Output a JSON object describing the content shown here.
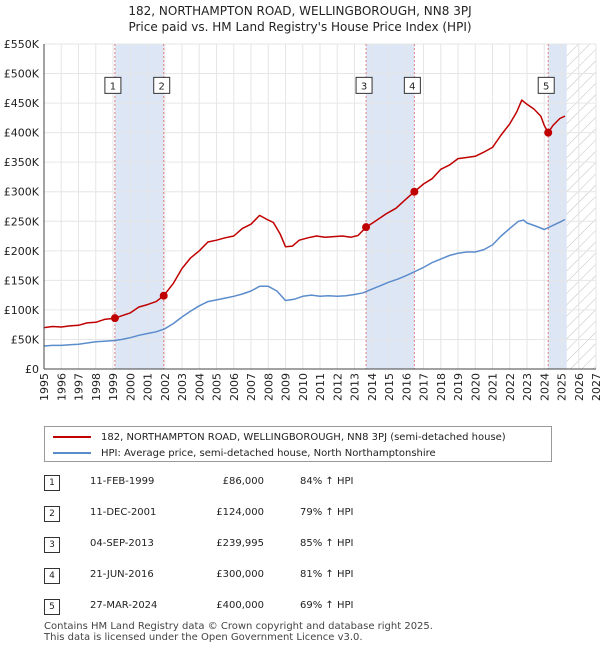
{
  "title": {
    "line1": "182, NORTHAMPTON ROAD, WELLINGBOROUGH, NN8 3PJ",
    "line2": "Price paid vs. HM Land Registry's House Price Index (HPI)"
  },
  "colors": {
    "property": "#c00000",
    "hpi": "#5b8ccc",
    "band": "#dde6f5",
    "marker_line": "#e08080",
    "future_hatch": "#c0c0c0",
    "grid": "#e6e6e6"
  },
  "chart_data": {
    "type": "line",
    "title": "182, NORTHAMPTON ROAD, WELLINGBOROUGH, NN8 3PJ — Price paid vs. HM Land Registry's House Price Index (HPI)",
    "xlim": [
      1995,
      2027
    ],
    "ylim": [
      0,
      550000
    ],
    "grid": true,
    "x_ticks": [
      1995,
      1996,
      1997,
      1998,
      1999,
      2000,
      2001,
      2002,
      2003,
      2004,
      2005,
      2006,
      2007,
      2008,
      2009,
      2010,
      2011,
      2012,
      2013,
      2014,
      2015,
      2016,
      2017,
      2018,
      2019,
      2020,
      2021,
      2022,
      2023,
      2024,
      2025,
      2026,
      2027
    ],
    "y_ticks": [
      {
        "value": 0,
        "label": "£0"
      },
      {
        "value": 50000,
        "label": "£50K"
      },
      {
        "value": 100000,
        "label": "£100K"
      },
      {
        "value": 150000,
        "label": "£150K"
      },
      {
        "value": 200000,
        "label": "£200K"
      },
      {
        "value": 250000,
        "label": "£250K"
      },
      {
        "value": 300000,
        "label": "£300K"
      },
      {
        "value": 350000,
        "label": "£350K"
      },
      {
        "value": 400000,
        "label": "£400K"
      },
      {
        "value": 450000,
        "label": "£450K"
      },
      {
        "value": 500000,
        "label": "£500K"
      },
      {
        "value": 550000,
        "label": "£550K"
      }
    ],
    "future_from": 2025.3,
    "shaded_bands": [
      [
        1999.11,
        2001.94
      ],
      [
        2013.67,
        2016.47
      ],
      [
        2024.23,
        2025.3
      ]
    ],
    "series": [
      {
        "name": "182, NORTHAMPTON ROAD, WELLINGBOROUGH, NN8 3PJ (semi-detached house)",
        "color": "#c00000",
        "points": [
          [
            1995,
            70000
          ],
          [
            1995.5,
            72000
          ],
          [
            1996,
            71000
          ],
          [
            1996.5,
            73000
          ],
          [
            1997,
            74000
          ],
          [
            1997.5,
            78000
          ],
          [
            1998,
            79000
          ],
          [
            1998.5,
            84000
          ],
          [
            1999.11,
            86000
          ],
          [
            1999.5,
            90000
          ],
          [
            2000,
            95000
          ],
          [
            2000.5,
            105000
          ],
          [
            2001,
            109000
          ],
          [
            2001.5,
            114000
          ],
          [
            2001.94,
            124000
          ],
          [
            2002.5,
            145000
          ],
          [
            2003,
            170000
          ],
          [
            2003.5,
            188000
          ],
          [
            2004,
            200000
          ],
          [
            2004.5,
            215000
          ],
          [
            2005,
            218000
          ],
          [
            2005.5,
            222000
          ],
          [
            2006,
            225000
          ],
          [
            2006.5,
            238000
          ],
          [
            2007,
            245000
          ],
          [
            2007.5,
            260000
          ],
          [
            2008,
            252000
          ],
          [
            2008.3,
            248000
          ],
          [
            2008.7,
            228000
          ],
          [
            2009,
            207000
          ],
          [
            2009.4,
            208000
          ],
          [
            2009.8,
            218000
          ],
          [
            2010.3,
            222000
          ],
          [
            2010.8,
            225000
          ],
          [
            2011.3,
            223000
          ],
          [
            2011.8,
            224000
          ],
          [
            2012.3,
            225000
          ],
          [
            2012.8,
            223000
          ],
          [
            2013.2,
            226000
          ],
          [
            2013.67,
            239995
          ],
          [
            2014.2,
            250000
          ],
          [
            2014.8,
            262000
          ],
          [
            2015.4,
            272000
          ],
          [
            2016,
            288000
          ],
          [
            2016.47,
            300000
          ],
          [
            2017,
            313000
          ],
          [
            2017.5,
            322000
          ],
          [
            2018,
            338000
          ],
          [
            2018.5,
            345000
          ],
          [
            2019,
            356000
          ],
          [
            2019.5,
            358000
          ],
          [
            2020,
            360000
          ],
          [
            2020.5,
            367000
          ],
          [
            2021,
            375000
          ],
          [
            2021.5,
            396000
          ],
          [
            2022,
            415000
          ],
          [
            2022.4,
            435000
          ],
          [
            2022.7,
            455000
          ],
          [
            2023.0,
            448000
          ],
          [
            2023.4,
            440000
          ],
          [
            2023.8,
            428000
          ],
          [
            2024.0,
            412000
          ],
          [
            2024.23,
            400000
          ],
          [
            2024.5,
            412000
          ],
          [
            2024.9,
            424000
          ],
          [
            2025.2,
            428000
          ]
        ]
      },
      {
        "name": "HPI: Average price, semi-detached house, North Northamptonshire",
        "color": "#5b8ccc",
        "points": [
          [
            1995,
            39000
          ],
          [
            1995.5,
            40000
          ],
          [
            1996,
            40000
          ],
          [
            1996.5,
            41000
          ],
          [
            1997,
            42000
          ],
          [
            1997.5,
            44000
          ],
          [
            1998,
            46000
          ],
          [
            1998.5,
            47000
          ],
          [
            1999,
            48000
          ],
          [
            1999.5,
            50000
          ],
          [
            2000,
            53000
          ],
          [
            2000.5,
            57000
          ],
          [
            2001,
            60000
          ],
          [
            2001.5,
            63000
          ],
          [
            2002,
            68000
          ],
          [
            2002.5,
            77000
          ],
          [
            2003,
            88000
          ],
          [
            2003.5,
            98000
          ],
          [
            2004,
            107000
          ],
          [
            2004.5,
            114000
          ],
          [
            2005,
            117000
          ],
          [
            2005.5,
            120000
          ],
          [
            2006,
            123000
          ],
          [
            2006.5,
            127000
          ],
          [
            2007,
            132000
          ],
          [
            2007.5,
            140000
          ],
          [
            2008,
            140000
          ],
          [
            2008.5,
            132000
          ],
          [
            2009,
            116000
          ],
          [
            2009.5,
            118000
          ],
          [
            2010,
            123000
          ],
          [
            2010.5,
            125000
          ],
          [
            2011,
            123000
          ],
          [
            2011.5,
            124000
          ],
          [
            2012,
            123000
          ],
          [
            2012.5,
            124000
          ],
          [
            2013,
            126000
          ],
          [
            2013.5,
            129000
          ],
          [
            2014,
            135000
          ],
          [
            2014.5,
            141000
          ],
          [
            2015,
            147000
          ],
          [
            2015.5,
            152000
          ],
          [
            2016,
            158000
          ],
          [
            2016.5,
            165000
          ],
          [
            2017,
            172000
          ],
          [
            2017.5,
            180000
          ],
          [
            2018,
            186000
          ],
          [
            2018.5,
            192000
          ],
          [
            2019,
            196000
          ],
          [
            2019.5,
            198000
          ],
          [
            2020,
            198000
          ],
          [
            2020.5,
            202000
          ],
          [
            2021,
            210000
          ],
          [
            2021.5,
            225000
          ],
          [
            2022,
            238000
          ],
          [
            2022.5,
            250000
          ],
          [
            2022.8,
            252000
          ],
          [
            2023,
            247000
          ],
          [
            2023.5,
            242000
          ],
          [
            2024,
            236000
          ],
          [
            2024.5,
            243000
          ],
          [
            2025.0,
            250000
          ],
          [
            2025.2,
            253000
          ]
        ]
      }
    ],
    "markers": [
      {
        "label": "1",
        "x": 1999.11,
        "y": 86000
      },
      {
        "label": "2",
        "x": 2001.94,
        "y": 124000
      },
      {
        "label": "3",
        "x": 2013.67,
        "y": 239995
      },
      {
        "label": "4",
        "x": 2016.47,
        "y": 300000
      },
      {
        "label": "5",
        "x": 2024.23,
        "y": 400000
      }
    ],
    "marker_label_y": 480000
  },
  "legend": {
    "property_label": "182, NORTHAMPTON ROAD, WELLINGBOROUGH, NN8 3PJ (semi-detached house)",
    "hpi_label": "HPI: Average price, semi-detached house, North Northamptonshire"
  },
  "sales": [
    {
      "num": "1",
      "date": "11-FEB-1999",
      "price": "£86,000",
      "hpi": "84% ↑ HPI"
    },
    {
      "num": "2",
      "date": "11-DEC-2001",
      "price": "£124,000",
      "hpi": "79% ↑ HPI"
    },
    {
      "num": "3",
      "date": "04-SEP-2013",
      "price": "£239,995",
      "hpi": "85% ↑ HPI"
    },
    {
      "num": "4",
      "date": "21-JUN-2016",
      "price": "£300,000",
      "hpi": "81% ↑ HPI"
    },
    {
      "num": "5",
      "date": "27-MAR-2024",
      "price": "£400,000",
      "hpi": "69% ↑ HPI"
    }
  ],
  "footer": {
    "line1": "Contains HM Land Registry data © Crown copyright and database right 2025.",
    "line2": "This data is licensed under the Open Government Licence v3.0."
  }
}
